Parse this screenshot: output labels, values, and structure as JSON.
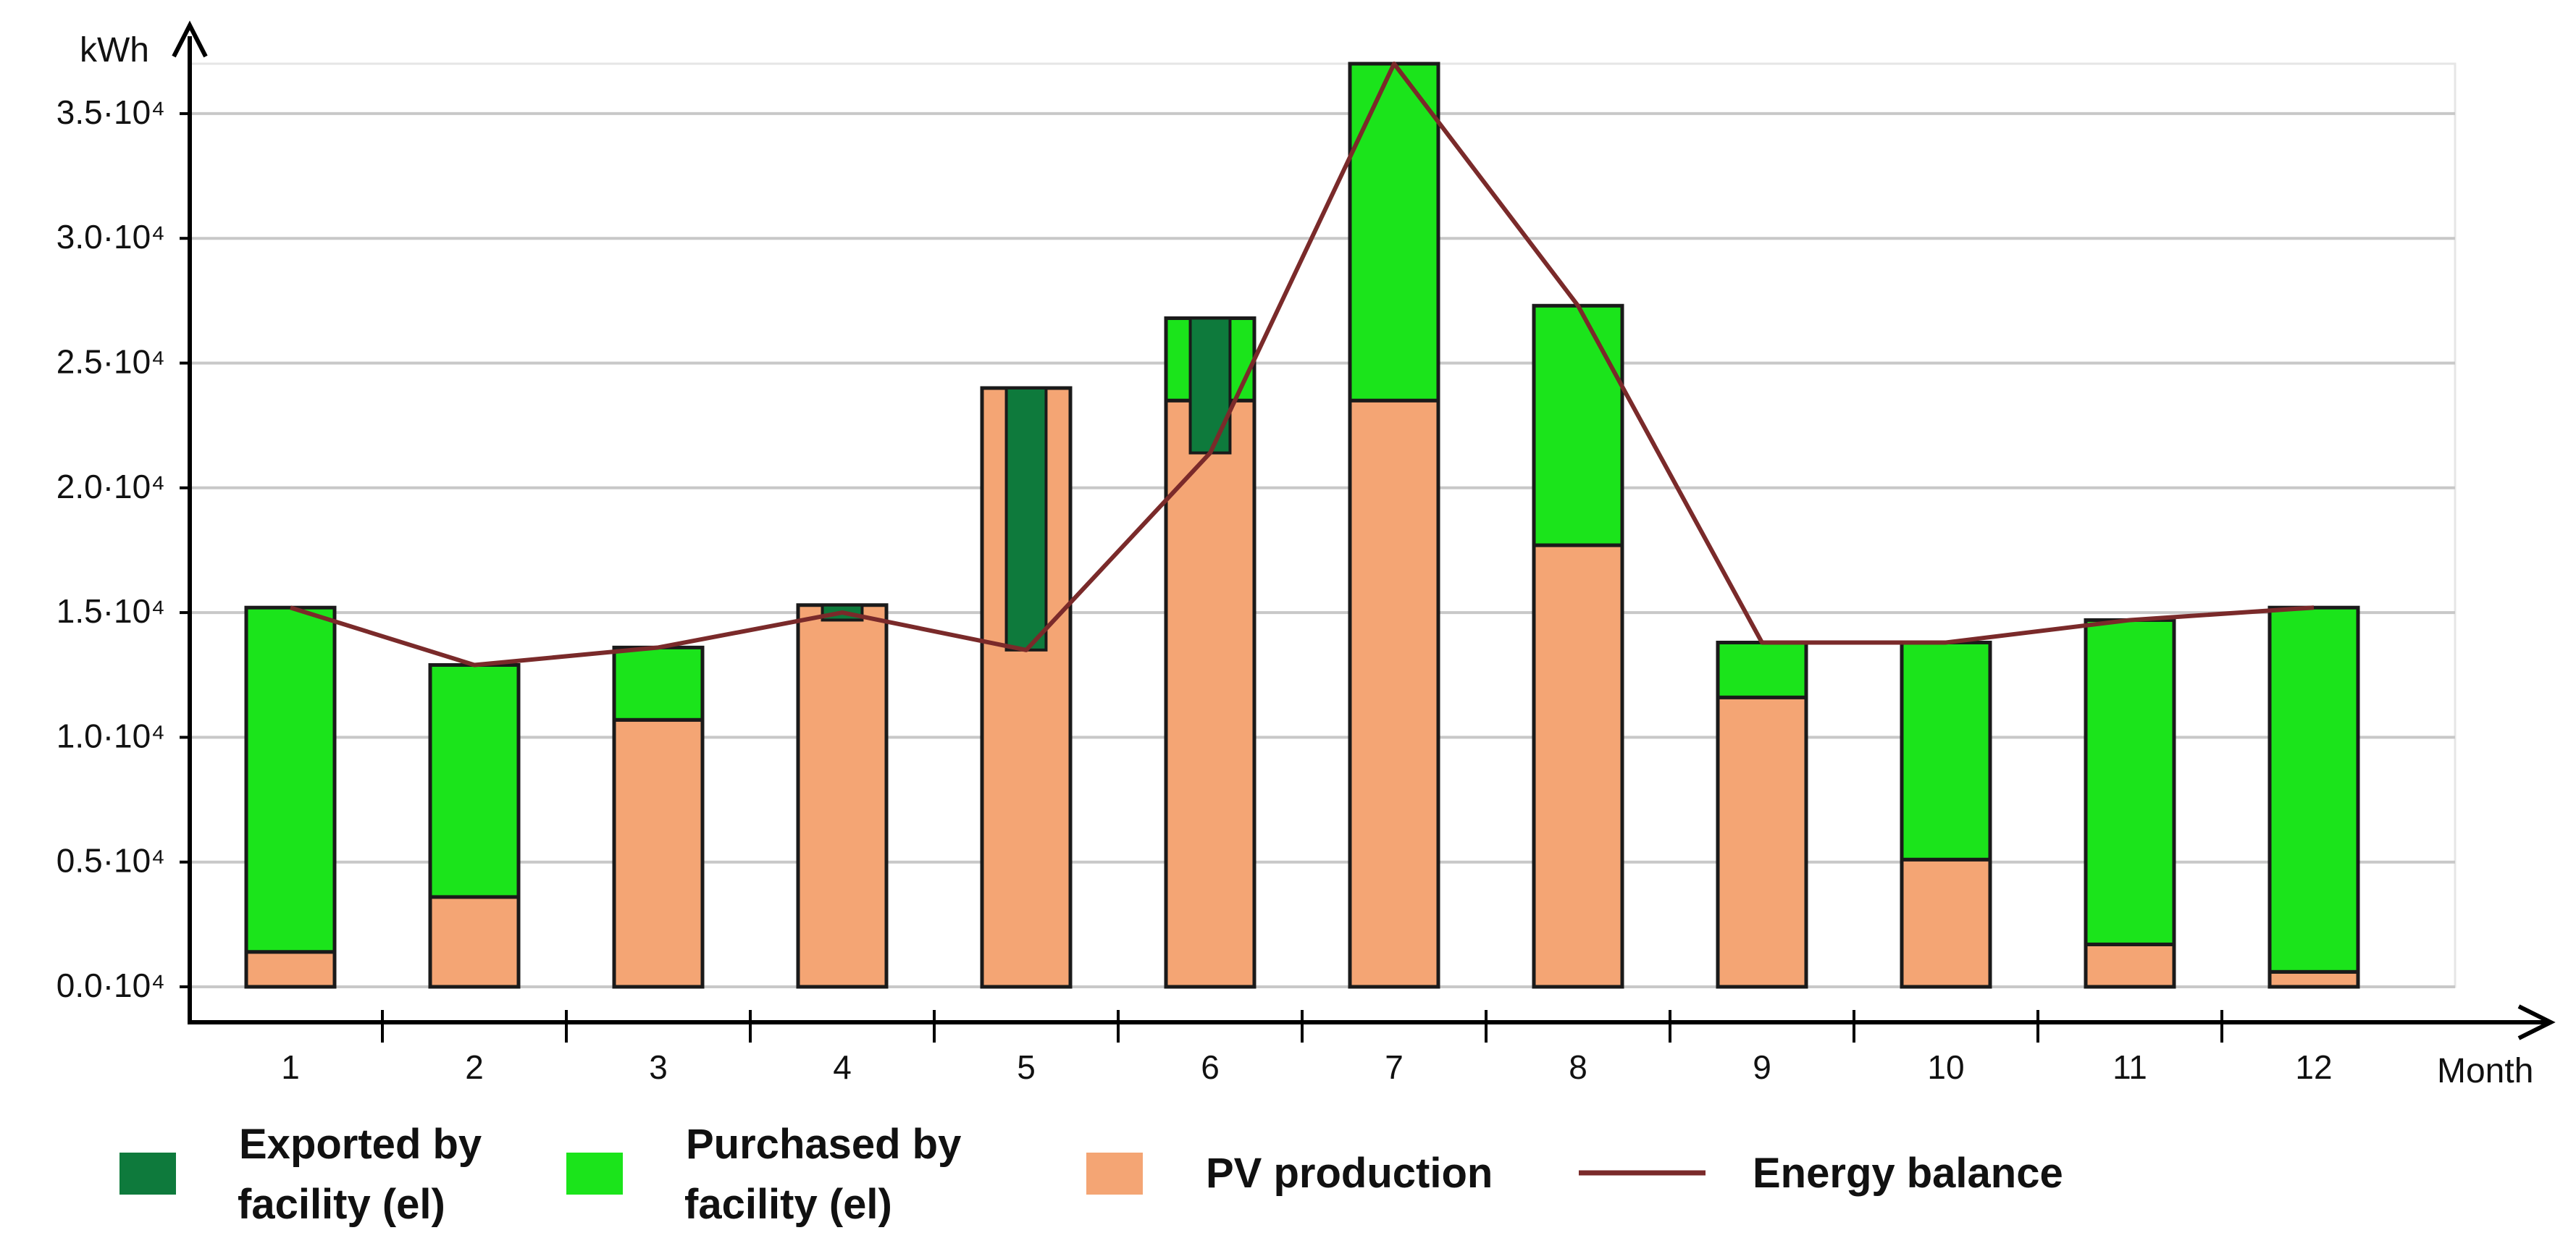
{
  "chart_data": {
    "type": "bar",
    "title": "",
    "xlabel": "Month",
    "ylabel": "kWh",
    "ylim": [
      0,
      37000
    ],
    "yticks": [
      0,
      5000,
      10000,
      15000,
      20000,
      25000,
      30000,
      35000
    ],
    "ytick_labels": [
      "0.0·10⁴",
      "0.5·10⁴",
      "1.0·10⁴",
      "1.5·10⁴",
      "2.0·10⁴",
      "2.5·10⁴",
      "3.0·10⁴",
      "3.5·10⁴"
    ],
    "categories": [
      "1",
      "2",
      "3",
      "4",
      "5",
      "6",
      "7",
      "8",
      "9",
      "10",
      "11",
      "12"
    ],
    "series": [
      {
        "name": "PV production",
        "color": "#f4a574",
        "values": [
          1400,
          3600,
          10700,
          15300,
          24000,
          23500,
          23500,
          17700,
          11600,
          5100,
          1700,
          600
        ]
      },
      {
        "name": "Purchased by facility (el)",
        "color": "#1be41b",
        "values": [
          13800,
          9300,
          2900,
          0,
          0,
          3300,
          13500,
          9600,
          2200,
          8700,
          13000,
          14600
        ]
      },
      {
        "name": "Exported by facility (el)",
        "color": "#0e7a3c",
        "values": [
          0,
          0,
          0,
          600,
          10500,
          5400,
          0,
          0,
          0,
          0,
          0,
          0
        ]
      },
      {
        "name": "Energy balance",
        "color": "#7a2a2a",
        "type": "line",
        "values": [
          15200,
          12900,
          13600,
          15000,
          13500,
          21400,
          37000,
          27300,
          13800,
          13800,
          14700,
          15200
        ]
      }
    ],
    "legend": {
      "position": "bottom",
      "items": [
        {
          "line1": "Exported by",
          "line2": "facility (el)",
          "color": "#0e7a3c",
          "kind": "box"
        },
        {
          "line1": "Purchased by",
          "line2": "facility (el)",
          "color": "#1be41b",
          "kind": "box"
        },
        {
          "line1": "PV production",
          "line2": "",
          "color": "#f4a574",
          "kind": "box"
        },
        {
          "line1": "Energy balance",
          "line2": "",
          "color": "#7a2a2a",
          "kind": "line"
        }
      ]
    },
    "grid": true
  }
}
